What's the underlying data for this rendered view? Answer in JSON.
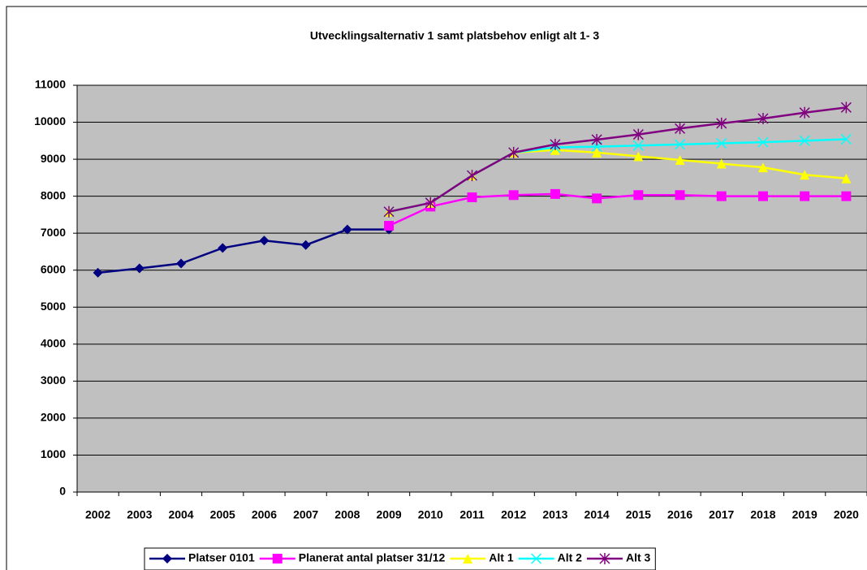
{
  "chart_data": {
    "type": "line",
    "title": "Utvecklingsalternativ 1 samt platsbehov enligt alt 1- 3",
    "categories": [
      "2002",
      "2003",
      "2004",
      "2005",
      "2006",
      "2007",
      "2008",
      "2009",
      "2010",
      "2011",
      "2012",
      "2013",
      "2014",
      "2015",
      "2016",
      "2017",
      "2018",
      "2019",
      "2020"
    ],
    "series": [
      {
        "name": "Platser 0101",
        "color": "#000080",
        "marker": "diamond",
        "values": [
          5930,
          6050,
          6180,
          6600,
          6800,
          6680,
          7100,
          7100,
          null,
          null,
          null,
          null,
          null,
          null,
          null,
          null,
          null,
          null,
          null
        ]
      },
      {
        "name": "Planerat antal platser 31/12",
        "color": "#ff00ff",
        "marker": "square",
        "values": [
          null,
          null,
          null,
          null,
          null,
          null,
          null,
          7200,
          7720,
          7970,
          8030,
          8060,
          7940,
          8030,
          8030,
          8000,
          8000,
          8000,
          8000
        ]
      },
      {
        "name": "Alt 1",
        "color": "#ffff00",
        "marker": "triangle",
        "values": [
          null,
          null,
          null,
          null,
          null,
          null,
          null,
          7580,
          7820,
          8560,
          9180,
          9250,
          9180,
          9080,
          8980,
          8880,
          8780,
          8580,
          8480
        ]
      },
      {
        "name": "Alt 2",
        "color": "#00ffff",
        "marker": "x",
        "values": [
          null,
          null,
          null,
          null,
          null,
          null,
          null,
          7580,
          7820,
          8560,
          9180,
          9320,
          9340,
          9370,
          9400,
          9430,
          9460,
          9500,
          9540
        ]
      },
      {
        "name": "Alt 3",
        "color": "#800080",
        "marker": "star",
        "values": [
          null,
          null,
          null,
          null,
          null,
          null,
          null,
          7580,
          7820,
          8560,
          9180,
          9400,
          9530,
          9670,
          9830,
          9970,
          10100,
          10260,
          10400
        ]
      }
    ],
    "ylim": [
      0,
      11000
    ],
    "yticks": [
      0,
      1000,
      2000,
      3000,
      4000,
      5000,
      6000,
      7000,
      8000,
      9000,
      10000,
      11000
    ],
    "grid": true,
    "legend": "bottom"
  }
}
